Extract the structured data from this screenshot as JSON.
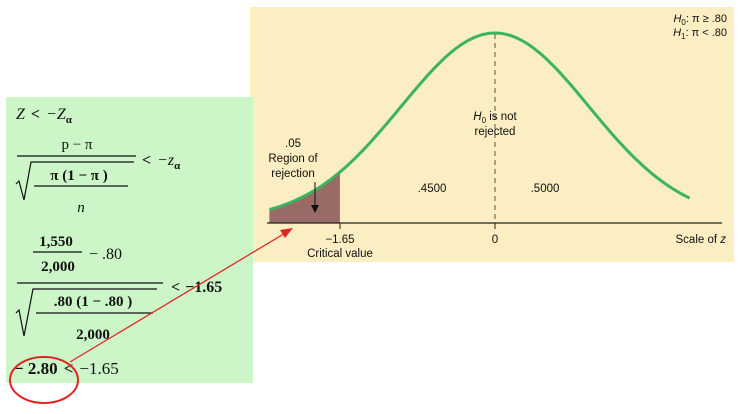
{
  "formula_panel": {
    "line1_lhs": "Z",
    "line1_op": "<",
    "line1_rhs": "−Z",
    "line1_sub": "α",
    "line2_num": "p − π",
    "line2_den_inner_top": "π (1 − π )",
    "line2_den_inner_bottom": "n",
    "line2_op": "<",
    "line2_rhs": "−z",
    "line2_sub": "α",
    "line3_num_frac_top": "1,550",
    "line3_num_frac_bottom": "2,000",
    "line3_num_rest": "− .80",
    "line3_den_inner_top": ".80 (1 − .80 )",
    "line3_den_inner_bottom": "2,000",
    "line3_op": "<",
    "line3_rhs": "−1.65",
    "line4_lhs": "− 2.80",
    "line4_op": "<",
    "line4_rhs": "−1.65"
  },
  "chart": {
    "hypothesis_h0_sym": "H",
    "hypothesis_h0_sub": "0",
    "hypothesis_h0_text": ": π ≥ .80",
    "hypothesis_h1_sym": "H",
    "hypothesis_h1_sub": "1",
    "hypothesis_h1_text": ": π < .80",
    "center_label_sym": "H",
    "center_label_sub": "0",
    "center_label_line1_rest": " is not",
    "center_label_line2": "rejected",
    "rejection_line1": ".05",
    "rejection_line2": "Region of",
    "rejection_line3": "rejection",
    "left_area": ".4500",
    "right_area": ".5000",
    "tick_critical": "−1.65",
    "critical_caption": "Critical value",
    "tick_zero": "0",
    "scale_label_text": "Scale of ",
    "scale_label_var": "z"
  },
  "chart_data": {
    "type": "area",
    "curve": "standard normal",
    "critical_value": -1.65,
    "alpha": 0.05,
    "areas": {
      "rejection": 0.05,
      "left_non_rejection": 0.45,
      "right": 0.5
    },
    "test_statistic": -2.8
  },
  "colors": {
    "formula_bg": "#ccf5c8",
    "chart_bg": "#faeec2",
    "curve": "#3cb35e",
    "rejection_fill": "#9a6a66",
    "annotation": "#e22626"
  }
}
